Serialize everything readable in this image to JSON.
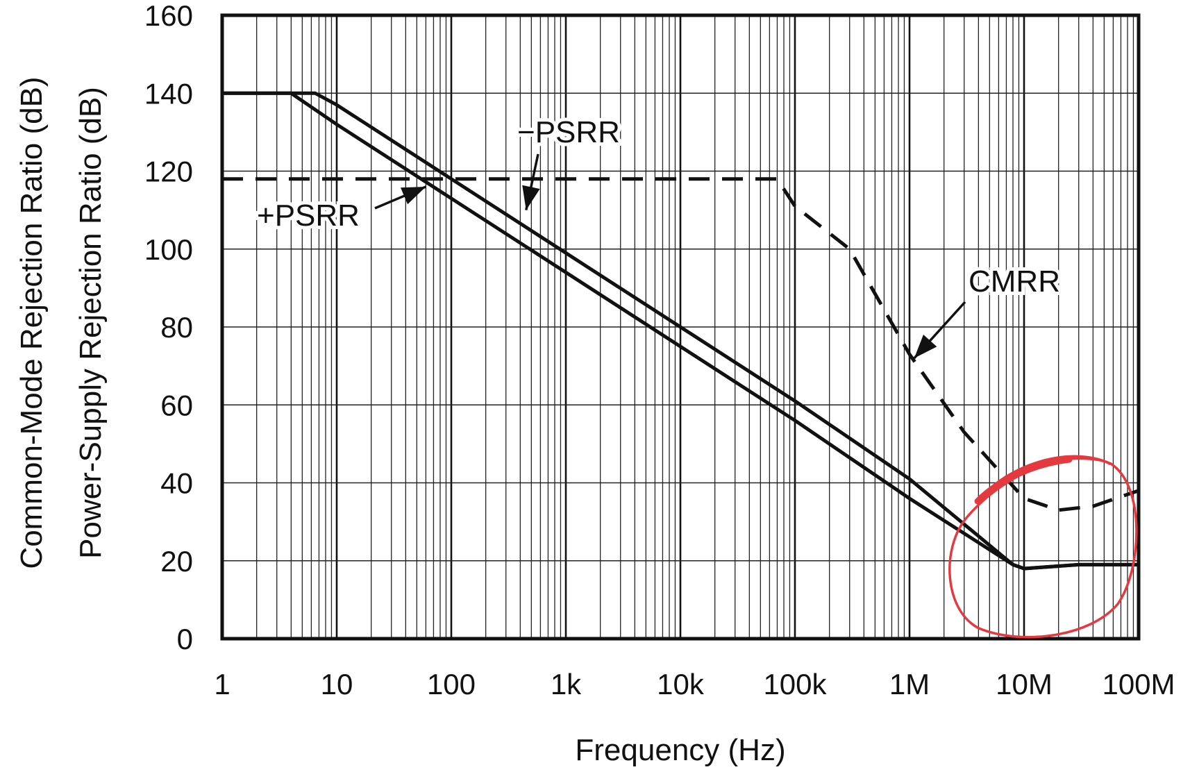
{
  "chart_data": {
    "type": "line",
    "title": "",
    "xlabel": "Frequency (Hz)",
    "ylabel_outer": "Common-Mode Rejection Ratio (dB)",
    "ylabel_inner": "Power-Supply Rejection Ratio (dB)",
    "x_scale": "log",
    "xlim": [
      1,
      100000000
    ],
    "ylim": [
      0,
      160
    ],
    "grid": true,
    "legend": "none",
    "x_ticks": [
      {
        "value": 1,
        "label": "1"
      },
      {
        "value": 10,
        "label": "10"
      },
      {
        "value": 100,
        "label": "100"
      },
      {
        "value": 1000,
        "label": "1k"
      },
      {
        "value": 10000,
        "label": "10k"
      },
      {
        "value": 100000,
        "label": "100k"
      },
      {
        "value": 1000000,
        "label": "1M"
      },
      {
        "value": 10000000,
        "label": "10M"
      },
      {
        "value": 100000000,
        "label": "100M"
      }
    ],
    "y_ticks": [
      {
        "value": 0,
        "label": "0"
      },
      {
        "value": 20,
        "label": "20"
      },
      {
        "value": 40,
        "label": "40"
      },
      {
        "value": 60,
        "label": "60"
      },
      {
        "value": 80,
        "label": "80"
      },
      {
        "value": 100,
        "label": "100"
      },
      {
        "value": 120,
        "label": "120"
      },
      {
        "value": 140,
        "label": "140"
      },
      {
        "value": 160,
        "label": "160"
      }
    ],
    "series": [
      {
        "name": "+PSRR",
        "style": "solid",
        "color": "#111111",
        "points": [
          [
            1,
            140
          ],
          [
            4,
            140
          ],
          [
            10,
            132
          ],
          [
            100,
            113
          ],
          [
            1000,
            94
          ],
          [
            10000,
            75
          ],
          [
            100000,
            56
          ],
          [
            1000000,
            36
          ],
          [
            8000000,
            19
          ],
          [
            10000000,
            18
          ],
          [
            30000000,
            19
          ],
          [
            100000000,
            19
          ]
        ]
      },
      {
        "name": "-PSRR",
        "style": "solid",
        "color": "#111111",
        "points": [
          [
            1,
            140
          ],
          [
            6.5,
            140
          ],
          [
            10,
            137
          ],
          [
            100,
            118
          ],
          [
            1000,
            99
          ],
          [
            10000,
            80
          ],
          [
            100000,
            61
          ],
          [
            1000000,
            41
          ],
          [
            8000000,
            19
          ],
          [
            10000000,
            18
          ],
          [
            30000000,
            19
          ],
          [
            100000000,
            19
          ]
        ]
      },
      {
        "name": "CMRR",
        "style": "dashed",
        "color": "#111111",
        "points": [
          [
            1,
            118
          ],
          [
            70000,
            118
          ],
          [
            100000,
            111
          ],
          [
            300000,
            100
          ],
          [
            1000000,
            73
          ],
          [
            3000000,
            53
          ],
          [
            10000000,
            36
          ],
          [
            20000000,
            33
          ],
          [
            40000000,
            34
          ],
          [
            100000000,
            38
          ]
        ]
      }
    ],
    "annotations": [
      {
        "text": "+PSRR",
        "series": "+PSRR",
        "point": [
          60,
          116
        ]
      },
      {
        "text": "−PSRR",
        "series": "-PSRR",
        "point": [
          450,
          110
        ]
      },
      {
        "text": "CMRR",
        "series": "CMRR",
        "point": [
          1100000,
          72
        ]
      }
    ],
    "highlight": {
      "shape": "hand-drawn circle",
      "color": "#e53940",
      "around_x": [
        3000000,
        100000000
      ],
      "around_y": [
        0,
        50
      ]
    }
  }
}
